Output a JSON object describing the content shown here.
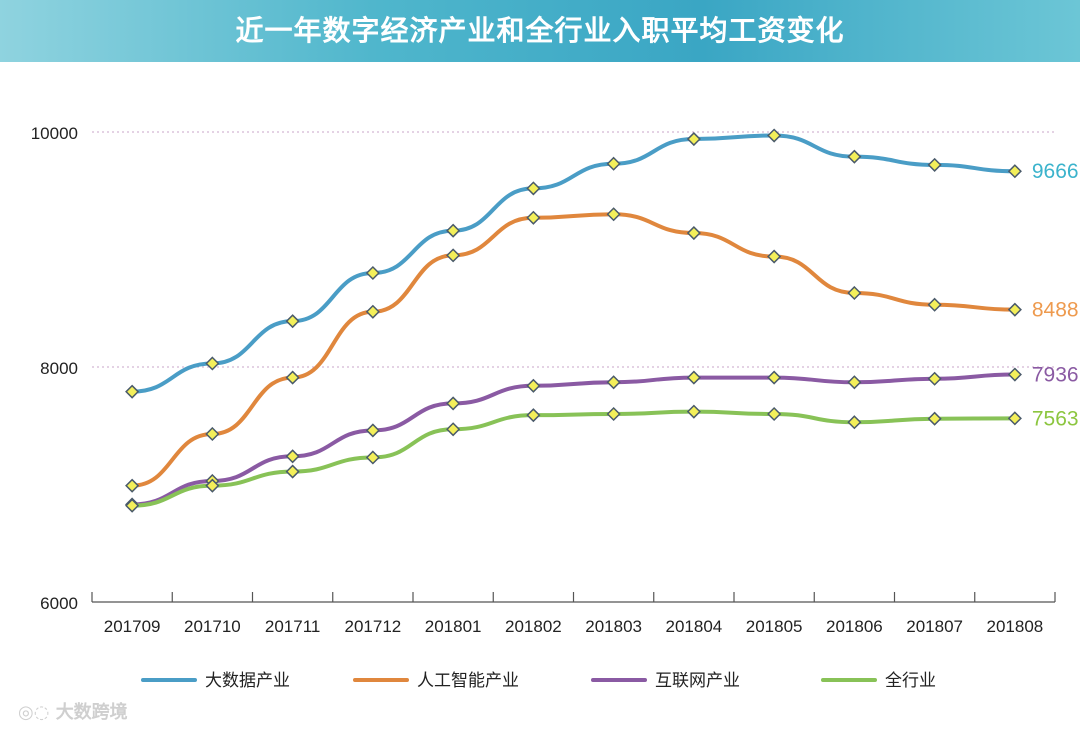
{
  "title": "近一年数字经济产业和全行业入职平均工资变化",
  "watermark": "大数跨境",
  "chart_data": {
    "type": "line",
    "title": "近一年数字经济产业和全行业入职平均工资变化",
    "categories": [
      "201709",
      "201710",
      "201711",
      "201712",
      "201801",
      "201802",
      "201803",
      "201804",
      "201805",
      "201806",
      "201807",
      "201808"
    ],
    "ylim": [
      6000,
      10000
    ],
    "yticks": [
      6000,
      8000,
      10000
    ],
    "series": [
      {
        "name": "大数据产业",
        "color": "#4a9dc6",
        "label": "9666",
        "label_color": "#3bb3cc",
        "values": [
          7790,
          8030,
          8390,
          8800,
          9160,
          9520,
          9730,
          9940,
          9970,
          9790,
          9720,
          9666
        ]
      },
      {
        "name": "人工智能产业",
        "color": "#e0873d",
        "label": "8488",
        "label_color": "#ee9a4e",
        "values": [
          6990,
          7430,
          7910,
          8470,
          8950,
          9270,
          9300,
          9140,
          8940,
          8630,
          8530,
          8488
        ]
      },
      {
        "name": "互联网产业",
        "color": "#8a5aa3",
        "label": "7936",
        "label_color": "#8a5aa3",
        "values": [
          6830,
          7030,
          7240,
          7460,
          7690,
          7840,
          7870,
          7910,
          7910,
          7870,
          7900,
          7936
        ]
      },
      {
        "name": "全行业",
        "color": "#88c257",
        "label": "7563",
        "label_color": "#8cc63f",
        "values": [
          6820,
          6990,
          7110,
          7230,
          7470,
          7590,
          7600,
          7620,
          7600,
          7530,
          7560,
          7563
        ]
      }
    ]
  }
}
